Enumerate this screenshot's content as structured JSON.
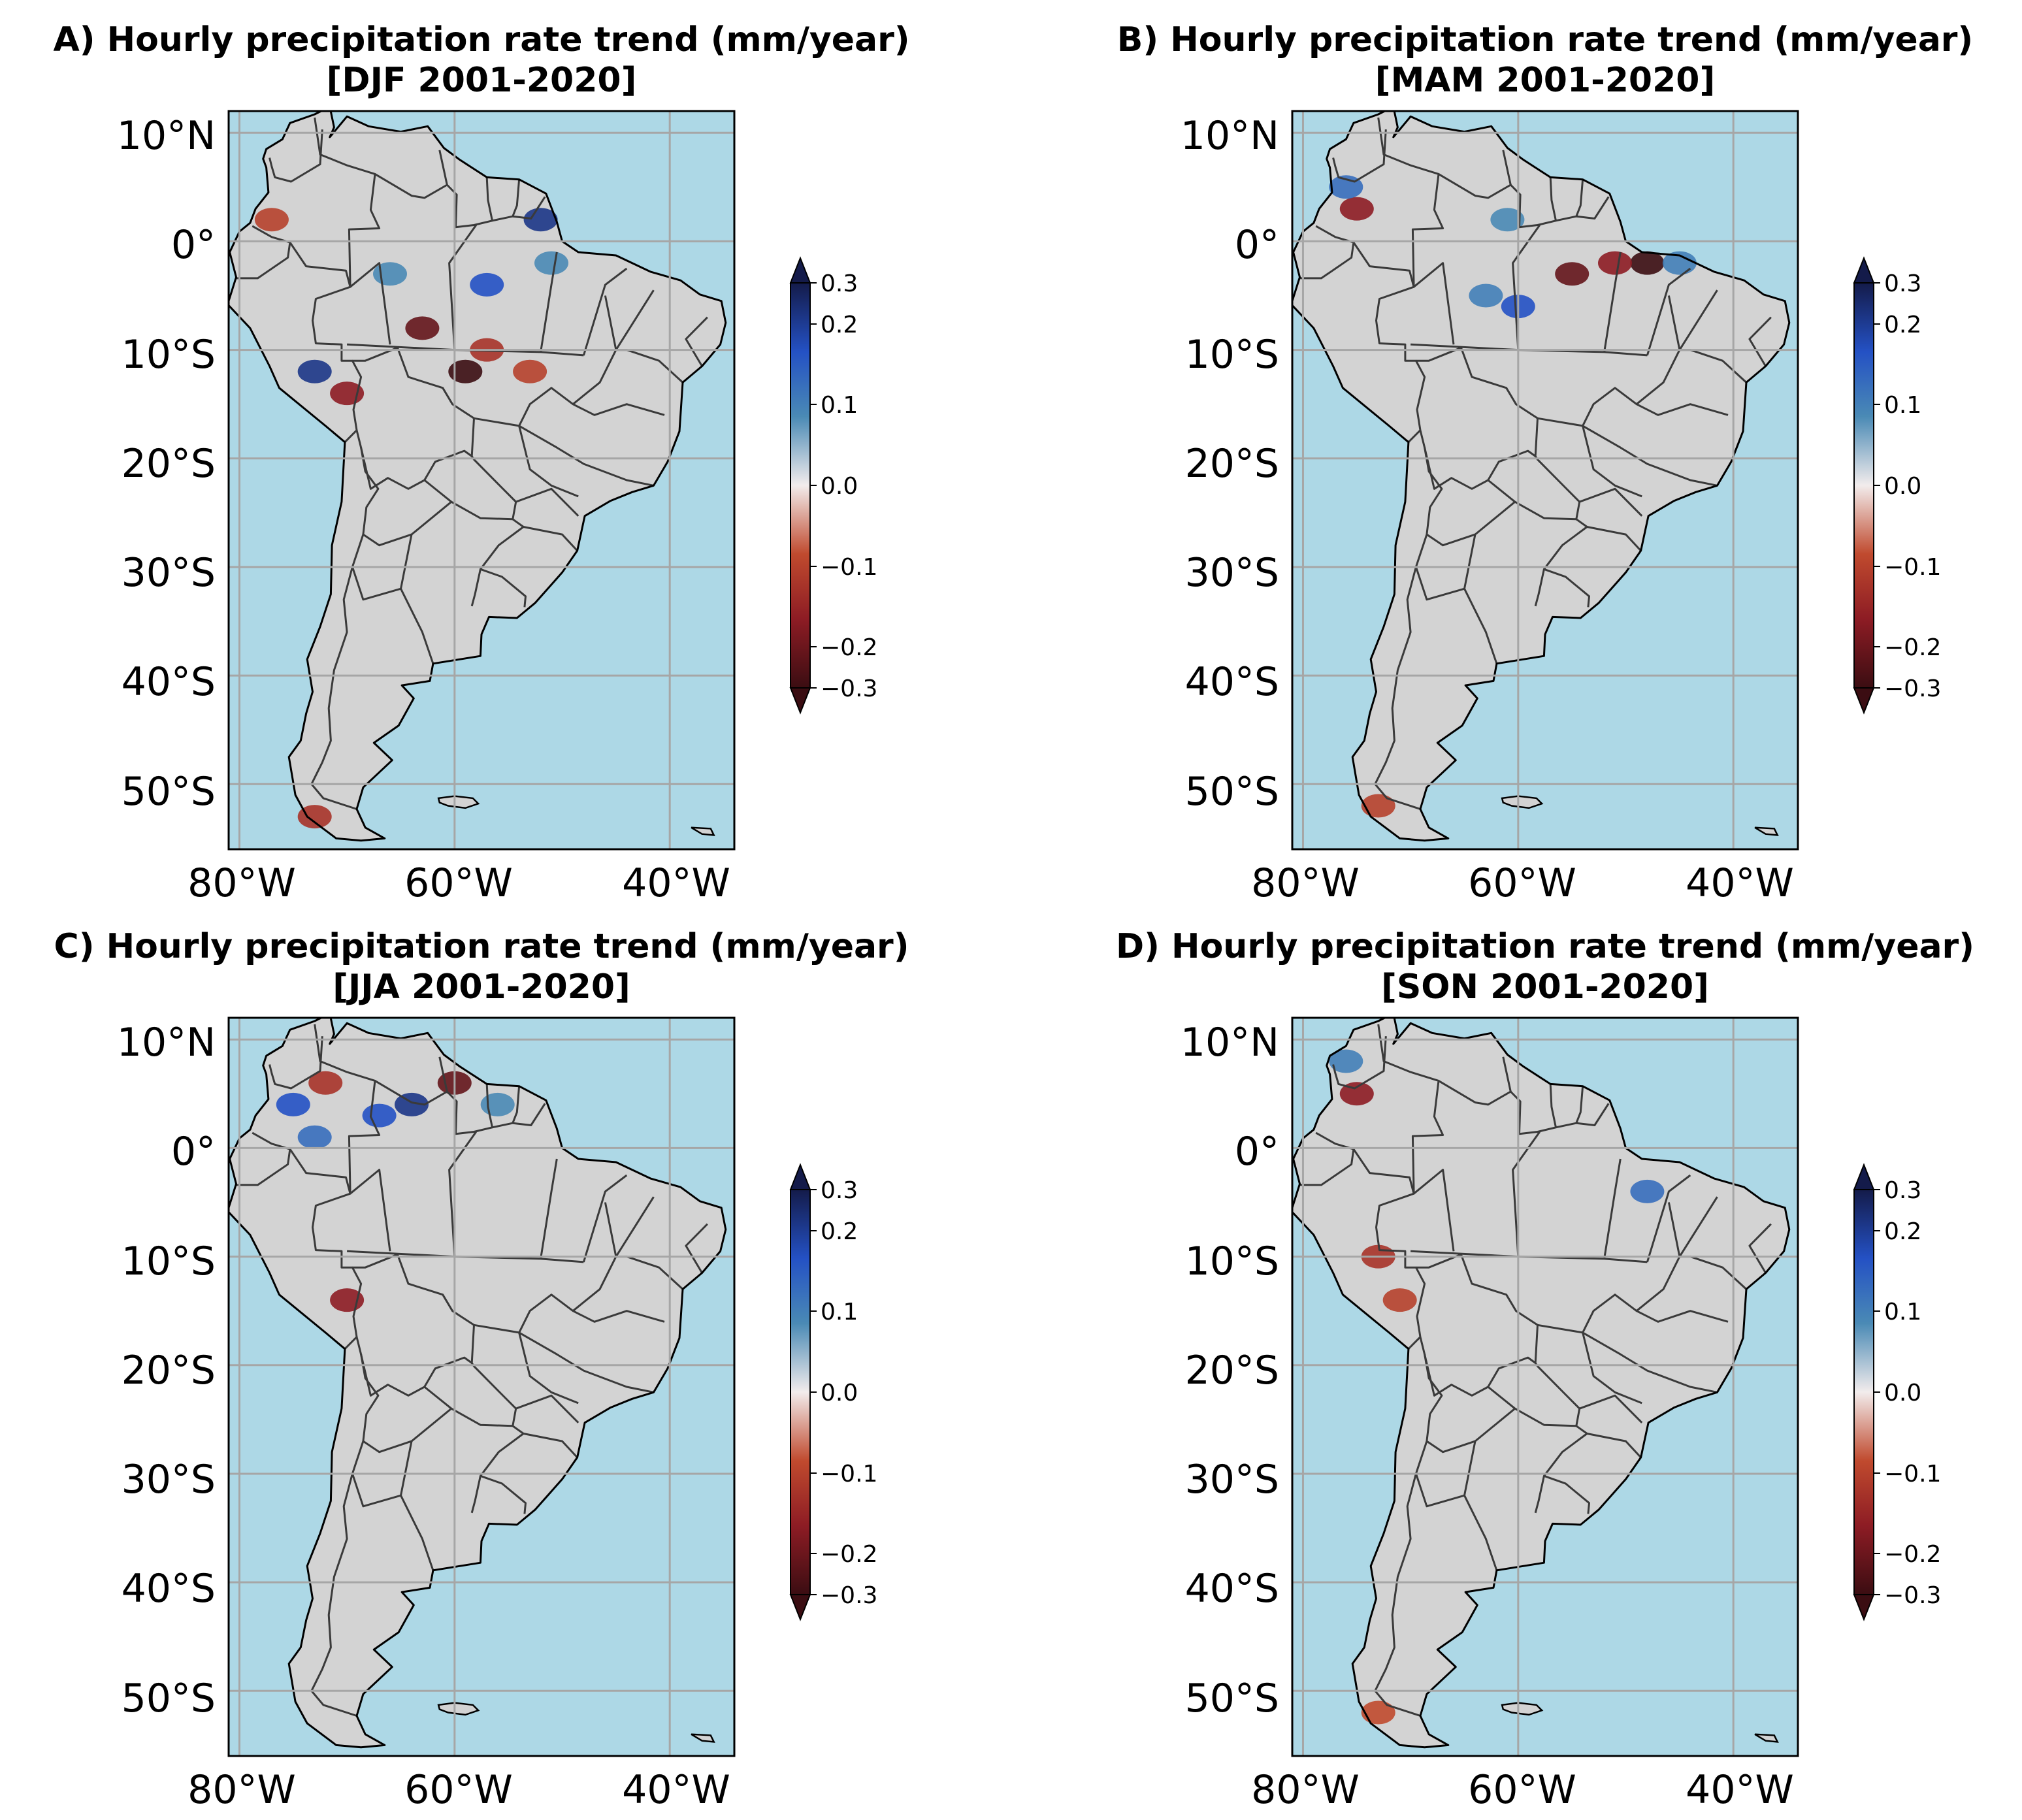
{
  "figure": {
    "colors": {
      "ocean": "#add8e6",
      "land": "#d3d3d3",
      "border": "#3a3a3a",
      "coast": "#000000",
      "grid": "#a6a6a6"
    },
    "colormap": "diverging red-white-blue (balance)",
    "extent": {
      "lon": [
        -81,
        -34
      ],
      "lat": [
        -56,
        12
      ]
    },
    "gridlines": {
      "lon": [
        -80,
        -60,
        -40
      ],
      "lat": [
        10,
        0,
        -10,
        -20,
        -30,
        -40,
        -50
      ]
    }
  },
  "panels": [
    {
      "id": "A",
      "title_line1": "A) Hourly precipitation rate trend (mm/year)",
      "title_line2": "[DJF 2001-2020]",
      "lat_labels": [
        "10°N",
        "0°",
        "10°S",
        "20°S",
        "30°S",
        "40°S",
        "50°S"
      ],
      "lon_labels": [
        "80°W",
        "60°W",
        "40°W"
      ],
      "colorbar": {
        "ticks": [
          "0.3",
          "0.2",
          "0.1",
          "0.0",
          "−0.1",
          "−0.2",
          "−0.3"
        ],
        "range": [
          -0.3,
          0.3
        ],
        "extend": "both"
      },
      "anomalies": [
        {
          "lon": -63,
          "lat": -8,
          "value": -0.25
        },
        {
          "lon": -59,
          "lat": -12,
          "value": -0.3
        },
        {
          "lon": -57,
          "lat": -10,
          "value": -0.15
        },
        {
          "lon": -73,
          "lat": -12,
          "value": 0.25
        },
        {
          "lon": -70,
          "lat": -14,
          "value": -0.2
        },
        {
          "lon": -57,
          "lat": -4,
          "value": 0.2
        },
        {
          "lon": -52,
          "lat": 2,
          "value": 0.25
        },
        {
          "lon": -51,
          "lat": -2,
          "value": 0.1
        },
        {
          "lon": -66,
          "lat": -3,
          "value": 0.1
        },
        {
          "lon": -53,
          "lat": -12,
          "value": -0.12
        },
        {
          "lon": -77,
          "lat": 2,
          "value": -0.12
        },
        {
          "lon": -73,
          "lat": -53,
          "value": -0.15
        }
      ]
    },
    {
      "id": "B",
      "title_line1": "B) Hourly precipitation rate trend (mm/year)",
      "title_line2": "[MAM 2001-2020]",
      "lat_labels": [
        "10°N",
        "0°",
        "10°S",
        "20°S",
        "30°S",
        "40°S",
        "50°S"
      ],
      "lon_labels": [
        "80°W",
        "60°W",
        "40°W"
      ],
      "colorbar": {
        "ticks": [
          "0.3",
          "0.2",
          "0.1",
          "0.0",
          "−0.1",
          "−0.2",
          "−0.3"
        ],
        "range": [
          -0.3,
          0.3
        ],
        "extend": "both"
      },
      "anomalies": [
        {
          "lon": -55,
          "lat": -3,
          "value": -0.25
        },
        {
          "lon": -48,
          "lat": -2,
          "value": -0.3
        },
        {
          "lon": -51,
          "lat": -2,
          "value": -0.2
        },
        {
          "lon": -60,
          "lat": -6,
          "value": 0.2
        },
        {
          "lon": -63,
          "lat": -5,
          "value": 0.12
        },
        {
          "lon": -75,
          "lat": 3,
          "value": -0.2
        },
        {
          "lon": -76,
          "lat": 5,
          "value": 0.15
        },
        {
          "lon": -61,
          "lat": 2,
          "value": 0.1
        },
        {
          "lon": -45,
          "lat": -2,
          "value": 0.12
        },
        {
          "lon": -73,
          "lat": -52,
          "value": -0.12
        }
      ]
    },
    {
      "id": "C",
      "title_line1": "C) Hourly precipitation rate trend (mm/year)",
      "title_line2": "[JJA 2001-2020]",
      "lat_labels": [
        "10°N",
        "0°",
        "10°S",
        "20°S",
        "30°S",
        "40°S",
        "50°S"
      ],
      "lon_labels": [
        "80°W",
        "60°W",
        "40°W"
      ],
      "colorbar": {
        "ticks": [
          "0.3",
          "0.2",
          "0.1",
          "0.0",
          "−0.1",
          "−0.2",
          "−0.3"
        ],
        "range": [
          -0.3,
          0.3
        ],
        "extend": "both"
      },
      "anomalies": [
        {
          "lon": -64,
          "lat": 4,
          "value": 0.25
        },
        {
          "lon": -67,
          "lat": 3,
          "value": 0.2
        },
        {
          "lon": -60,
          "lat": 6,
          "value": -0.25
        },
        {
          "lon": -75,
          "lat": 4,
          "value": 0.2
        },
        {
          "lon": -72,
          "lat": 6,
          "value": -0.15
        },
        {
          "lon": -56,
          "lat": 4,
          "value": 0.1
        },
        {
          "lon": -73,
          "lat": 1,
          "value": 0.15
        },
        {
          "lon": -70,
          "lat": -14,
          "value": -0.2
        }
      ]
    },
    {
      "id": "D",
      "title_line1": "D) Hourly precipitation rate trend (mm/year)",
      "title_line2": "[SON 2001-2020]",
      "lat_labels": [
        "10°N",
        "0°",
        "10°S",
        "20°S",
        "30°S",
        "40°S",
        "50°S"
      ],
      "lon_labels": [
        "80°W",
        "60°W",
        "40°W"
      ],
      "colorbar": {
        "ticks": [
          "0.3",
          "0.2",
          "0.1",
          "0.0",
          "−0.1",
          "−0.2",
          "−0.3"
        ],
        "range": [
          -0.3,
          0.3
        ],
        "extend": "both"
      },
      "anomalies": [
        {
          "lon": -75,
          "lat": 5,
          "value": -0.2
        },
        {
          "lon": -76,
          "lat": 8,
          "value": 0.12
        },
        {
          "lon": -73,
          "lat": -10,
          "value": -0.15
        },
        {
          "lon": -48,
          "lat": -4,
          "value": 0.15
        },
        {
          "lon": -71,
          "lat": -14,
          "value": -0.12
        },
        {
          "lon": -73,
          "lat": -52,
          "value": -0.1
        }
      ]
    }
  ]
}
